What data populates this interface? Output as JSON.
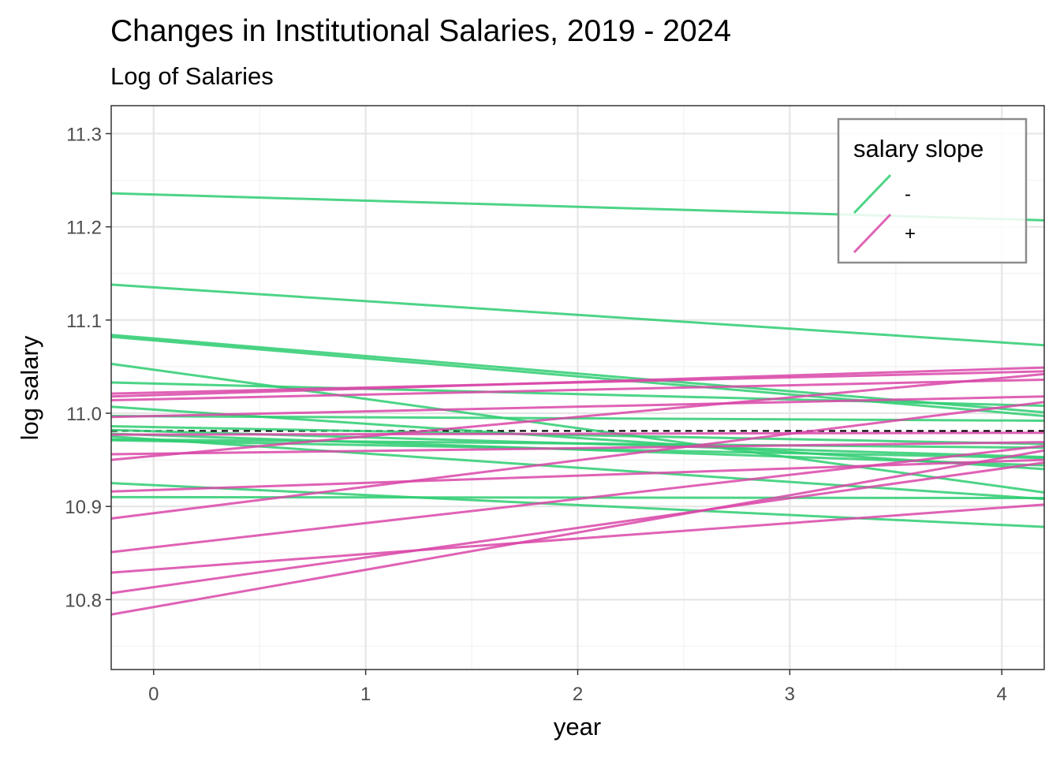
{
  "chart_data": {
    "type": "line",
    "title": "Changes in Institutional Salaries, 2019 - 2024",
    "subtitle": "Log of Salaries",
    "xlabel": "year",
    "ylabel": "log salary",
    "xlim": [
      -0.2,
      4.2
    ],
    "ylim": [
      10.725,
      11.33
    ],
    "x_ticks": [
      0,
      1,
      2,
      3,
      4
    ],
    "y_ticks": [
      10.8,
      10.9,
      11.0,
      11.1,
      11.2,
      11.3
    ],
    "x_tick_labels": [
      "0",
      "1",
      "2",
      "3",
      "4"
    ],
    "y_tick_labels": [
      "10.8",
      "10.9",
      "11.0",
      "11.1",
      "11.2",
      "11.3"
    ],
    "grid": true,
    "reference_line": {
      "y": 10.981,
      "style": "dashed",
      "color": "#000000"
    },
    "legend": {
      "title": "salary slope",
      "position": "top-right",
      "entries": [
        {
          "label": "-",
          "color": "#2ecc71"
        },
        {
          "label": "+",
          "color": "#d946a8"
        }
      ]
    },
    "series": [
      {
        "slope_group": "-",
        "x": [
          -0.2,
          4.2
        ],
        "y": [
          11.236,
          11.207
        ]
      },
      {
        "slope_group": "-",
        "x": [
          -0.2,
          4.2
        ],
        "y": [
          11.138,
          11.073
        ]
      },
      {
        "slope_group": "-",
        "x": [
          -0.2,
          4.2
        ],
        "y": [
          11.084,
          11.001
        ]
      },
      {
        "slope_group": "-",
        "x": [
          -0.2,
          4.2
        ],
        "y": [
          11.082,
          10.997
        ]
      },
      {
        "slope_group": "-",
        "x": [
          -0.2,
          4.2
        ],
        "y": [
          11.053,
          10.915
        ]
      },
      {
        "slope_group": "-",
        "x": [
          -0.2,
          4.2
        ],
        "y": [
          11.033,
          11.008
        ]
      },
      {
        "slope_group": "-",
        "x": [
          -0.2,
          4.2
        ],
        "y": [
          11.007,
          10.94
        ]
      },
      {
        "slope_group": "-",
        "x": [
          -0.2,
          4.2
        ],
        "y": [
          10.997,
          10.992
        ]
      },
      {
        "slope_group": "-",
        "x": [
          -0.2,
          4.2
        ],
        "y": [
          10.986,
          10.967
        ]
      },
      {
        "slope_group": "-",
        "x": [
          -0.2,
          4.2
        ],
        "y": [
          10.982,
          10.953
        ]
      },
      {
        "slope_group": "-",
        "x": [
          -0.2,
          4.2
        ],
        "y": [
          10.978,
          10.944
        ]
      },
      {
        "slope_group": "-",
        "x": [
          -0.2,
          4.2
        ],
        "y": [
          10.975,
          10.908
        ]
      },
      {
        "slope_group": "-",
        "x": [
          -0.2,
          4.2
        ],
        "y": [
          10.972,
          10.963
        ]
      },
      {
        "slope_group": "-",
        "x": [
          -0.2,
          4.2
        ],
        "y": [
          10.971,
          10.952
        ]
      },
      {
        "slope_group": "-",
        "x": [
          -0.2,
          4.2
        ],
        "y": [
          10.925,
          10.878
        ]
      },
      {
        "slope_group": "-",
        "x": [
          -0.2,
          4.2
        ],
        "y": [
          10.91,
          10.909
        ]
      },
      {
        "slope_group": "+",
        "x": [
          -0.2,
          4.2
        ],
        "y": [
          11.021,
          11.045
        ]
      },
      {
        "slope_group": "+",
        "x": [
          -0.2,
          4.2
        ],
        "y": [
          11.018,
          11.049
        ]
      },
      {
        "slope_group": "+",
        "x": [
          -0.2,
          4.2
        ],
        "y": [
          11.014,
          11.036
        ]
      },
      {
        "slope_group": "+",
        "x": [
          -0.2,
          4.2
        ],
        "y": [
          10.996,
          11.018
        ]
      },
      {
        "slope_group": "+",
        "x": [
          -0.2,
          4.2
        ],
        "y": [
          10.977,
          10.979
        ]
      },
      {
        "slope_group": "+",
        "x": [
          -0.2,
          4.2
        ],
        "y": [
          10.956,
          10.969
        ]
      },
      {
        "slope_group": "+",
        "x": [
          -0.2,
          4.2
        ],
        "y": [
          10.95,
          11.042
        ]
      },
      {
        "slope_group": "+",
        "x": [
          -0.2,
          4.2
        ],
        "y": [
          10.916,
          10.95
        ]
      },
      {
        "slope_group": "+",
        "x": [
          -0.2,
          4.2
        ],
        "y": [
          10.887,
          11.012
        ]
      },
      {
        "slope_group": "+",
        "x": [
          -0.2,
          4.2
        ],
        "y": [
          10.851,
          10.965
        ]
      },
      {
        "slope_group": "+",
        "x": [
          -0.2,
          4.2
        ],
        "y": [
          10.829,
          10.902
        ]
      },
      {
        "slope_group": "+",
        "x": [
          -0.2,
          4.2
        ],
        "y": [
          10.807,
          10.947
        ]
      },
      {
        "slope_group": "+",
        "x": [
          -0.2,
          4.2
        ],
        "y": [
          10.784,
          10.96
        ]
      }
    ]
  }
}
